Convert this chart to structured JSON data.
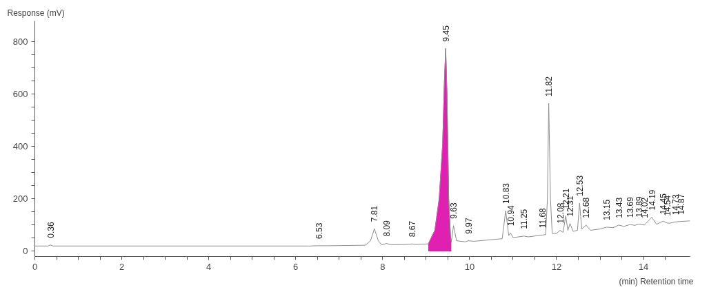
{
  "chart_data": {
    "type": "line",
    "ylabel": "Response (mV)",
    "xlabel": "(min) Retention time",
    "xlim": [
      0,
      15.07
    ],
    "ylim": [
      -20,
      880
    ],
    "xticks": [
      0,
      {
        "value": 0.5,
        "label": null
      },
      {
        "value": 1,
        "label": null
      },
      {
        "value": 1.5,
        "label": null
      },
      2,
      {
        "value": 2.5,
        "label": null
      },
      {
        "value": 3,
        "label": null
      },
      {
        "value": 3.5,
        "label": null
      },
      4,
      {
        "value": 4.5,
        "label": null
      },
      {
        "value": 5,
        "label": null
      },
      {
        "value": 5.5,
        "label": null
      },
      6,
      {
        "value": 6.5,
        "label": null
      },
      {
        "value": 7,
        "label": null
      },
      {
        "value": 7.5,
        "label": null
      },
      8,
      {
        "value": 8.5,
        "label": null
      },
      {
        "value": 9,
        "label": null
      },
      {
        "value": 9.5,
        "label": null
      },
      10,
      {
        "value": 10.5,
        "label": null
      },
      {
        "value": 11,
        "label": null
      },
      {
        "value": 11.5,
        "label": null
      },
      12,
      {
        "value": 12.5,
        "label": null
      },
      {
        "value": 13,
        "label": null
      },
      {
        "value": 13.5,
        "label": null
      },
      14,
      {
        "value": 14.5,
        "label": null
      }
    ],
    "yticks": [
      0,
      {
        "value": 50,
        "label": null
      },
      {
        "value": 100,
        "label": null
      },
      {
        "value": 150,
        "label": null
      },
      200,
      {
        "value": 250,
        "label": null
      },
      {
        "value": 300,
        "label": null
      },
      {
        "value": 350,
        "label": null
      },
      400,
      {
        "value": 450,
        "label": null
      },
      {
        "value": 500,
        "label": null
      },
      {
        "value": 550,
        "label": null
      },
      600,
      {
        "value": 650,
        "label": null
      },
      {
        "value": 700,
        "label": null
      },
      {
        "value": 750,
        "label": null
      },
      800
    ],
    "grid": false,
    "series": [
      {
        "color": "#8c8c8c",
        "x": [
          0,
          0.3,
          0.36,
          0.42,
          6.3,
          6.53,
          6.7,
          7.6,
          7.72,
          7.81,
          7.9,
          7.98,
          8.09,
          8.18,
          8.6,
          8.67,
          8.75,
          9.05,
          9.2,
          9.3,
          9.38,
          9.42,
          9.45,
          9.48,
          9.52,
          9.56,
          9.58,
          9.63,
          9.7,
          9.9,
          9.97,
          10.1,
          10.75,
          10.83,
          10.9,
          10.94,
          11.0,
          11.25,
          11.35,
          11.68,
          11.75,
          11.79,
          11.82,
          11.86,
          11.9,
          12.0,
          12.08,
          12.15,
          12.21,
          12.26,
          12.31,
          12.38,
          12.48,
          12.53,
          12.58,
          12.68,
          12.78,
          13.0,
          13.15,
          13.3,
          13.43,
          13.55,
          13.69,
          13.8,
          13.89,
          14.02,
          14.19,
          14.3,
          14.45,
          14.54,
          14.6,
          14.73,
          14.87,
          15.07
        ],
        "values": [
          20,
          20,
          24,
          20,
          20,
          21,
          21,
          23,
          40,
          86,
          40,
          24,
          30,
          25,
          26,
          28,
          26,
          28,
          80,
          200,
          410,
          650,
          775,
          600,
          200,
          60,
          35,
          98,
          40,
          36,
          40,
          38,
          48,
          155,
          60,
          70,
          52,
          58,
          55,
          62,
          64,
          200,
          565,
          200,
          68,
          68,
          80,
          72,
          135,
          80,
          106,
          76,
          80,
          184,
          85,
          100,
          80,
          85,
          92,
          90,
          100,
          95,
          102,
          99,
          104,
          100,
          130,
          103,
          115,
          108,
          107,
          112,
          114,
          116
        ]
      },
      {
        "type": "area",
        "color": "#e020b0",
        "x": [
          9.05,
          9.2,
          9.3,
          9.38,
          9.42,
          9.45,
          9.48,
          9.52,
          9.56,
          9.58
        ],
        "values": [
          28,
          80,
          200,
          410,
          650,
          775,
          600,
          200,
          60,
          35
        ]
      }
    ],
    "annotations": [
      {
        "text": "0.36",
        "x": 0.36,
        "y": 24
      },
      {
        "text": "6.53",
        "x": 6.53,
        "y": 21
      },
      {
        "text": "7.81",
        "x": 7.81,
        "y": 86
      },
      {
        "text": "8.09",
        "x": 8.09,
        "y": 30
      },
      {
        "text": "8.67",
        "x": 8.67,
        "y": 28
      },
      {
        "text": "9.45",
        "x": 9.45,
        "y": 775
      },
      {
        "text": "9.63",
        "x": 9.63,
        "y": 98
      },
      {
        "text": "9.97",
        "x": 9.97,
        "y": 40
      },
      {
        "text": "10.83",
        "x": 10.83,
        "y": 155
      },
      {
        "text": "10.94",
        "x": 10.94,
        "y": 70
      },
      {
        "text": "11.25",
        "x": 11.25,
        "y": 58
      },
      {
        "text": "11.68",
        "x": 11.68,
        "y": 62
      },
      {
        "text": "11.82",
        "x": 11.82,
        "y": 565
      },
      {
        "text": "12.08",
        "x": 12.08,
        "y": 80
      },
      {
        "text": "12.21",
        "x": 12.21,
        "y": 135
      },
      {
        "text": "12.31",
        "x": 12.31,
        "y": 106
      },
      {
        "text": "12.53",
        "x": 12.53,
        "y": 184
      },
      {
        "text": "12.68",
        "x": 12.68,
        "y": 100
      },
      {
        "text": "13.15",
        "x": 13.15,
        "y": 92
      },
      {
        "text": "13.43",
        "x": 13.43,
        "y": 100
      },
      {
        "text": "13.69",
        "x": 13.69,
        "y": 102
      },
      {
        "text": "13.89",
        "x": 13.89,
        "y": 104
      },
      {
        "text": "14.02",
        "x": 14.02,
        "y": 100
      },
      {
        "text": "14.19",
        "x": 14.19,
        "y": 130
      },
      {
        "text": "14.45",
        "x": 14.45,
        "y": 115
      },
      {
        "text": "14.54",
        "x": 14.54,
        "y": 108
      },
      {
        "text": "14.73",
        "x": 14.73,
        "y": 112
      },
      {
        "text": "14.87",
        "x": 14.87,
        "y": 114
      }
    ]
  }
}
